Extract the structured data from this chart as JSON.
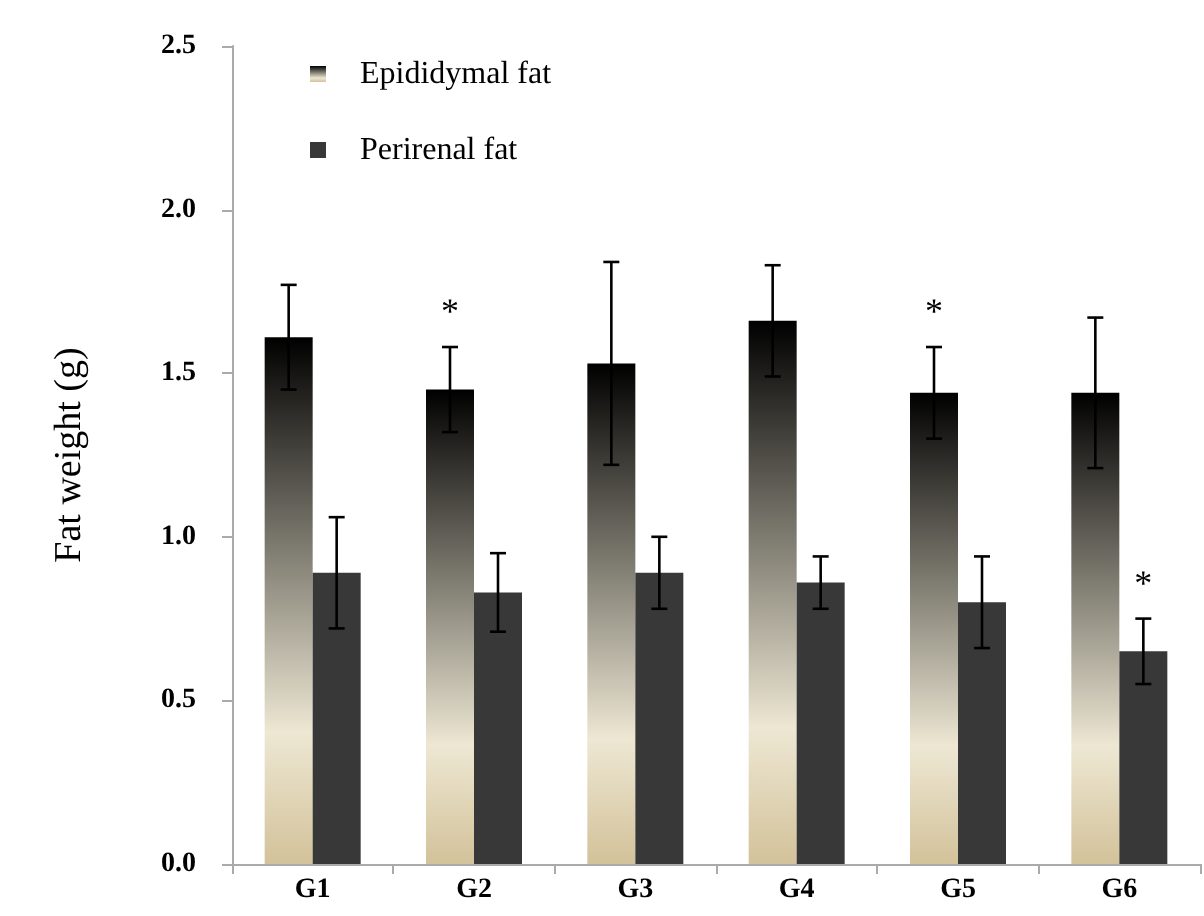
{
  "chart_data": {
    "type": "bar",
    "ylabel": "Fat weight (g)",
    "categories": [
      "G1",
      "G2",
      "G3",
      "G4",
      "G5",
      "G6"
    ],
    "series": [
      {
        "name": "Epididymal fat",
        "color": "#d3c29a",
        "values": [
          1.61,
          1.45,
          1.53,
          1.66,
          1.44,
          1.44
        ],
        "errors": [
          0.16,
          0.13,
          0.31,
          0.17,
          0.14,
          0.23
        ]
      },
      {
        "name": "Perirenal fat",
        "color": "#383838",
        "values": [
          0.89,
          0.83,
          0.89,
          0.86,
          0.8,
          0.65
        ],
        "errors": [
          0.17,
          0.12,
          0.11,
          0.08,
          0.14,
          0.1
        ]
      }
    ],
    "ylim": [
      0,
      2.5
    ],
    "yticks": [
      {
        "value": 0,
        "label": "0.0"
      },
      {
        "value": 0.5,
        "label": "0.5"
      },
      {
        "value": 1,
        "label": "1.0"
      },
      {
        "value": 1.5,
        "label": "1.5"
      },
      {
        "value": 2,
        "label": "2.0"
      },
      {
        "value": 2.5,
        "label": "2.5"
      }
    ],
    "annotations": [
      {
        "text": "*",
        "x": "G2",
        "y": 1.45
      },
      {
        "text": "*",
        "x": "G5",
        "y": 1.44
      },
      {
        "text": "*",
        "x": "G6",
        "y": 0.65
      }
    ],
    "grid": false,
    "legend": "top left"
  }
}
